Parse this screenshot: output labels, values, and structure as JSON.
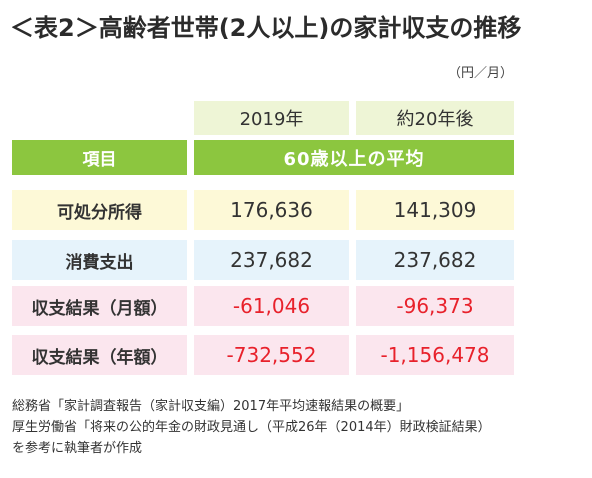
{
  "title": "＜表2＞高齢者世帯(2人以上)の家計収支の推移",
  "unit": "（円／月）",
  "table": {
    "year_headers": [
      "2019年",
      "約20年後"
    ],
    "item_header": "項目",
    "avg_header": "60歳以上の平均",
    "rows": [
      {
        "label": "可処分所得",
        "v2019": "176,636",
        "v20": "141,309"
      },
      {
        "label": "消費支出",
        "v2019": "237,682",
        "v20": "237,682"
      },
      {
        "label": "収支結果（月額）",
        "v2019": "-61,046",
        "v20": "-96,373"
      },
      {
        "label": "収支結果（年額）",
        "v2019": "-732,552",
        "v20": "-1,156,478"
      }
    ]
  },
  "source": [
    "総務省「家計調査報告（家計収支編）2017年平均速報結果の概要」",
    "厚生労働省「将来の公的年金の財政見通し（平成26年（2014年）財政検証結果）",
    "を参考に執筆者が作成"
  ],
  "colors": {
    "header_green": "#8cc63f",
    "year_bg": "#eef5d6",
    "row1_bg": "#fdf9d7",
    "row2_bg": "#e6f3fb",
    "row3_bg": "#fbe6ee",
    "negative": "#e8212b"
  }
}
